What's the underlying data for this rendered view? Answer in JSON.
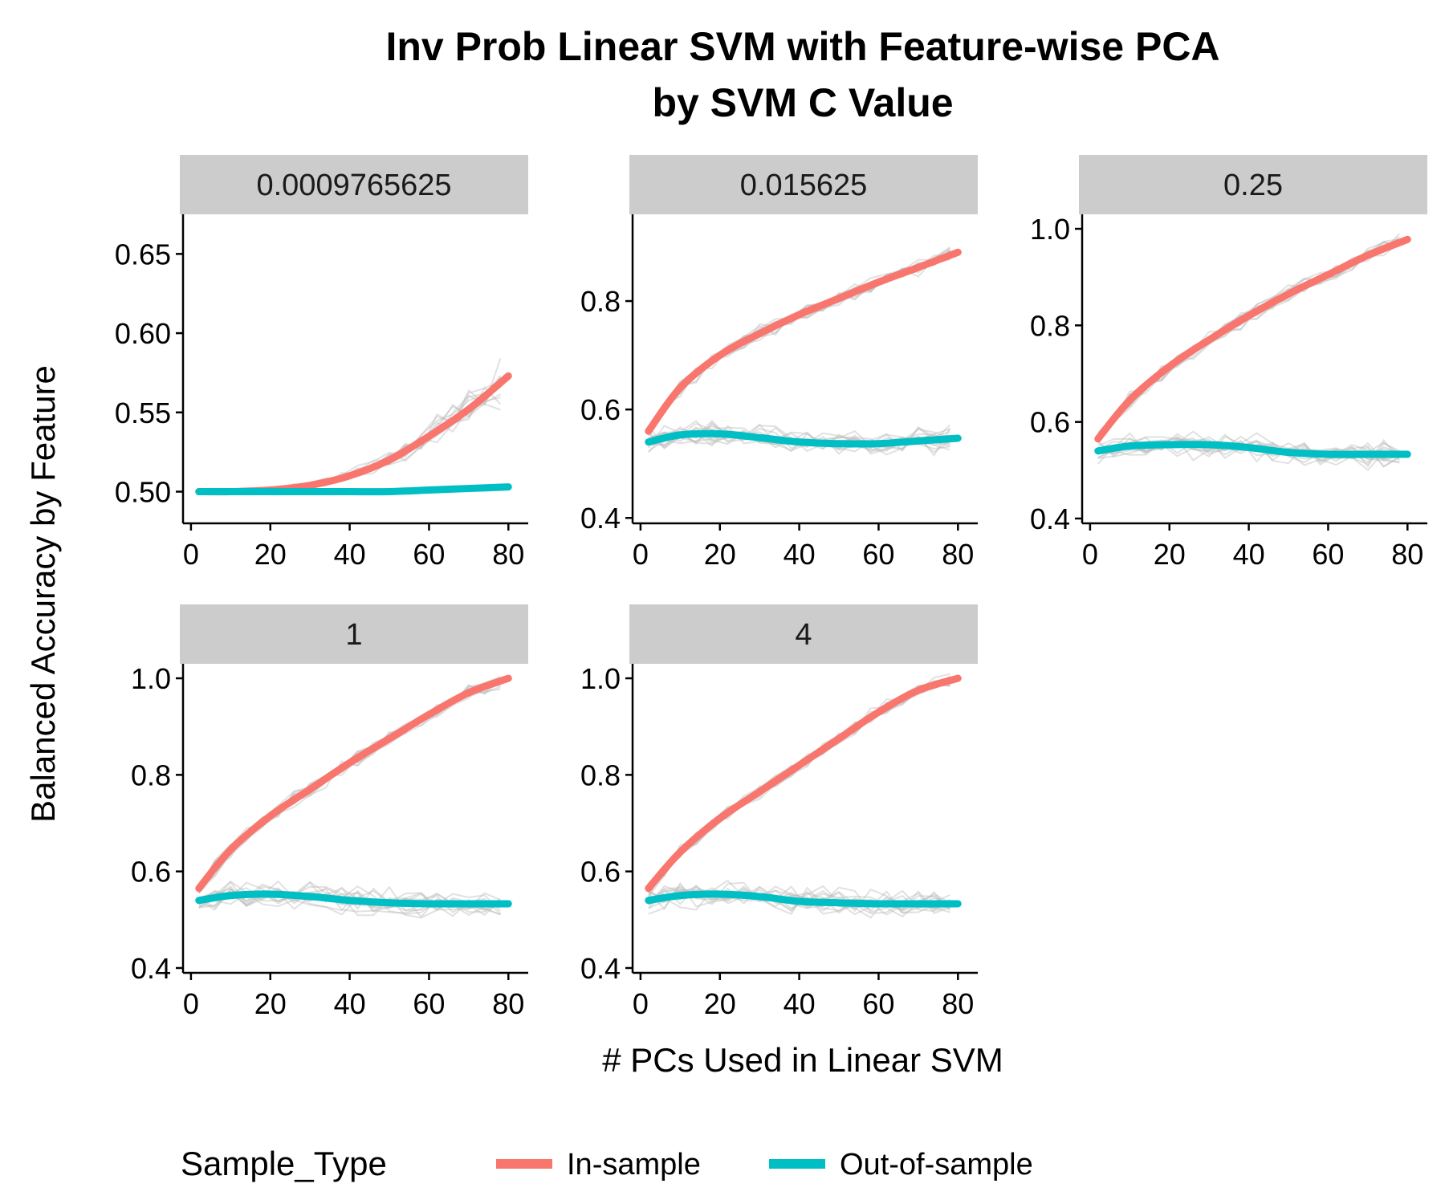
{
  "chart_data": {
    "type": "line",
    "facet_type": "small-multiples",
    "title_lines": [
      "Inv Prob Linear SVM with Feature-wise PCA",
      "by SVM C Value"
    ],
    "xlabel": "# PCs Used in Linear SVM",
    "ylabel": "Balanced Accuracy by Feature",
    "legend": {
      "title": "Sample_Type",
      "placement": "bottom",
      "entries": [
        {
          "name": "In-sample",
          "color": "#F8766D"
        },
        {
          "name": "Out-of-sample",
          "color": "#00BFC4"
        }
      ]
    },
    "x_ticks": [
      0,
      20,
      40,
      60,
      80
    ],
    "xlim": [
      -2,
      85
    ],
    "background_lines_color": "#bdbdbd",
    "strip_fill": "#cccccc",
    "panels": [
      {
        "label": "0.0009765625",
        "ylim": [
          0.48,
          0.675
        ],
        "y_ticks": [
          0.5,
          0.55,
          0.6,
          0.65
        ],
        "y_tick_labels": [
          "0.50",
          "0.55",
          "0.60",
          "0.65"
        ],
        "series": [
          {
            "name": "In-sample",
            "x": [
              2,
              10,
              20,
              30,
              40,
              50,
              60,
              70,
              80
            ],
            "y": [
              0.5,
              0.5,
              0.501,
              0.504,
              0.51,
              0.52,
              0.535,
              0.552,
              0.573
            ]
          },
          {
            "name": "Out-of-sample",
            "x": [
              2,
              10,
              20,
              30,
              40,
              50,
              60,
              70,
              80
            ],
            "y": [
              0.5,
              0.5,
              0.5,
              0.5,
              0.5,
              0.5,
              0.501,
              0.502,
              0.503
            ]
          }
        ]
      },
      {
        "label": "0.015625",
        "ylim": [
          0.39,
          0.96
        ],
        "y_ticks": [
          0.4,
          0.6,
          0.8
        ],
        "y_tick_labels": [
          "0.4",
          "0.6",
          "0.8"
        ],
        "series": [
          {
            "name": "In-sample",
            "x": [
              2,
              10,
              20,
              30,
              40,
              50,
              60,
              70,
              80
            ],
            "y": [
              0.56,
              0.64,
              0.7,
              0.74,
              0.775,
              0.805,
              0.835,
              0.862,
              0.89
            ]
          },
          {
            "name": "Out-of-sample",
            "x": [
              2,
              10,
              20,
              30,
              40,
              50,
              60,
              70,
              80
            ],
            "y": [
              0.54,
              0.553,
              0.555,
              0.548,
              0.54,
              0.537,
              0.537,
              0.542,
              0.547
            ]
          }
        ]
      },
      {
        "label": "0.25",
        "ylim": [
          0.39,
          1.03
        ],
        "y_ticks": [
          0.4,
          0.6,
          0.8,
          1.0
        ],
        "y_tick_labels": [
          "0.4",
          "0.6",
          "0.8",
          "1.0"
        ],
        "series": [
          {
            "name": "In-sample",
            "x": [
              2,
              10,
              20,
              30,
              40,
              50,
              60,
              70,
              80
            ],
            "y": [
              0.565,
              0.645,
              0.715,
              0.77,
              0.82,
              0.865,
              0.905,
              0.945,
              0.978
            ]
          },
          {
            "name": "Out-of-sample",
            "x": [
              2,
              10,
              20,
              30,
              40,
              50,
              60,
              70,
              80
            ],
            "y": [
              0.54,
              0.55,
              0.553,
              0.553,
              0.547,
              0.537,
              0.533,
              0.533,
              0.533
            ]
          }
        ]
      },
      {
        "label": "1",
        "ylim": [
          0.39,
          1.03
        ],
        "y_ticks": [
          0.4,
          0.6,
          0.8,
          1.0
        ],
        "y_tick_labels": [
          "0.4",
          "0.6",
          "0.8",
          "1.0"
        ],
        "series": [
          {
            "name": "In-sample",
            "x": [
              2,
              10,
              20,
              30,
              40,
              50,
              60,
              70,
              80
            ],
            "y": [
              0.565,
              0.645,
              0.715,
              0.77,
              0.825,
              0.875,
              0.925,
              0.97,
              1.0
            ]
          },
          {
            "name": "Out-of-sample",
            "x": [
              2,
              10,
              20,
              30,
              40,
              50,
              60,
              70,
              80
            ],
            "y": [
              0.54,
              0.55,
              0.553,
              0.548,
              0.54,
              0.535,
              0.533,
              0.533,
              0.533
            ]
          }
        ]
      },
      {
        "label": "4",
        "ylim": [
          0.39,
          1.03
        ],
        "y_ticks": [
          0.4,
          0.6,
          0.8,
          1.0
        ],
        "y_tick_labels": [
          "0.4",
          "0.6",
          "0.8",
          "1.0"
        ],
        "series": [
          {
            "name": "In-sample",
            "x": [
              2,
              10,
              20,
              30,
              40,
              50,
              60,
              70,
              80
            ],
            "y": [
              0.565,
              0.64,
              0.71,
              0.765,
              0.82,
              0.875,
              0.93,
              0.975,
              1.0
            ]
          },
          {
            "name": "Out-of-sample",
            "x": [
              2,
              10,
              20,
              30,
              40,
              50,
              60,
              70,
              80
            ],
            "y": [
              0.54,
              0.55,
              0.553,
              0.548,
              0.538,
              0.535,
              0.533,
              0.533,
              0.533
            ]
          }
        ]
      }
    ]
  }
}
